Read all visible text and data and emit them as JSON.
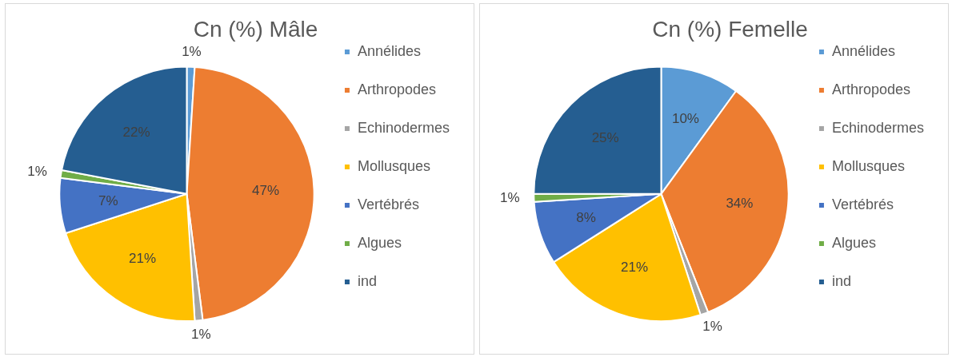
{
  "chart_data": [
    {
      "type": "pie",
      "title": "Cn (%) Mâle",
      "categories": [
        "Annélides",
        "Arthropodes",
        "Echinodermes",
        "Mollusques",
        "Vertébrés",
        "Algues",
        "ind"
      ],
      "values": [
        1,
        47,
        1,
        21,
        7,
        1,
        22
      ],
      "value_labels": [
        "1%",
        "47%",
        "1%",
        "21%",
        "7%",
        "1%",
        "22%"
      ],
      "colors": [
        "#5b9bd5",
        "#ed7d31",
        "#a5a5a5",
        "#ffc000",
        "#4472c4",
        "#70ad47",
        "#255e91"
      ],
      "legend": "right"
    },
    {
      "type": "pie",
      "title": "Cn (%) Femelle",
      "categories": [
        "Annélides",
        "Arthropodes",
        "Echinodermes",
        "Mollusques",
        "Vertébrés",
        "Algues",
        "ind"
      ],
      "values": [
        10,
        34,
        1,
        21,
        8,
        1,
        25
      ],
      "value_labels": [
        "10%",
        "34%",
        "1%",
        "21%",
        "8%",
        "1%",
        "25%"
      ],
      "colors": [
        "#5b9bd5",
        "#ed7d31",
        "#a5a5a5",
        "#ffc000",
        "#4472c4",
        "#70ad47",
        "#255e91"
      ],
      "legend": "right"
    }
  ]
}
